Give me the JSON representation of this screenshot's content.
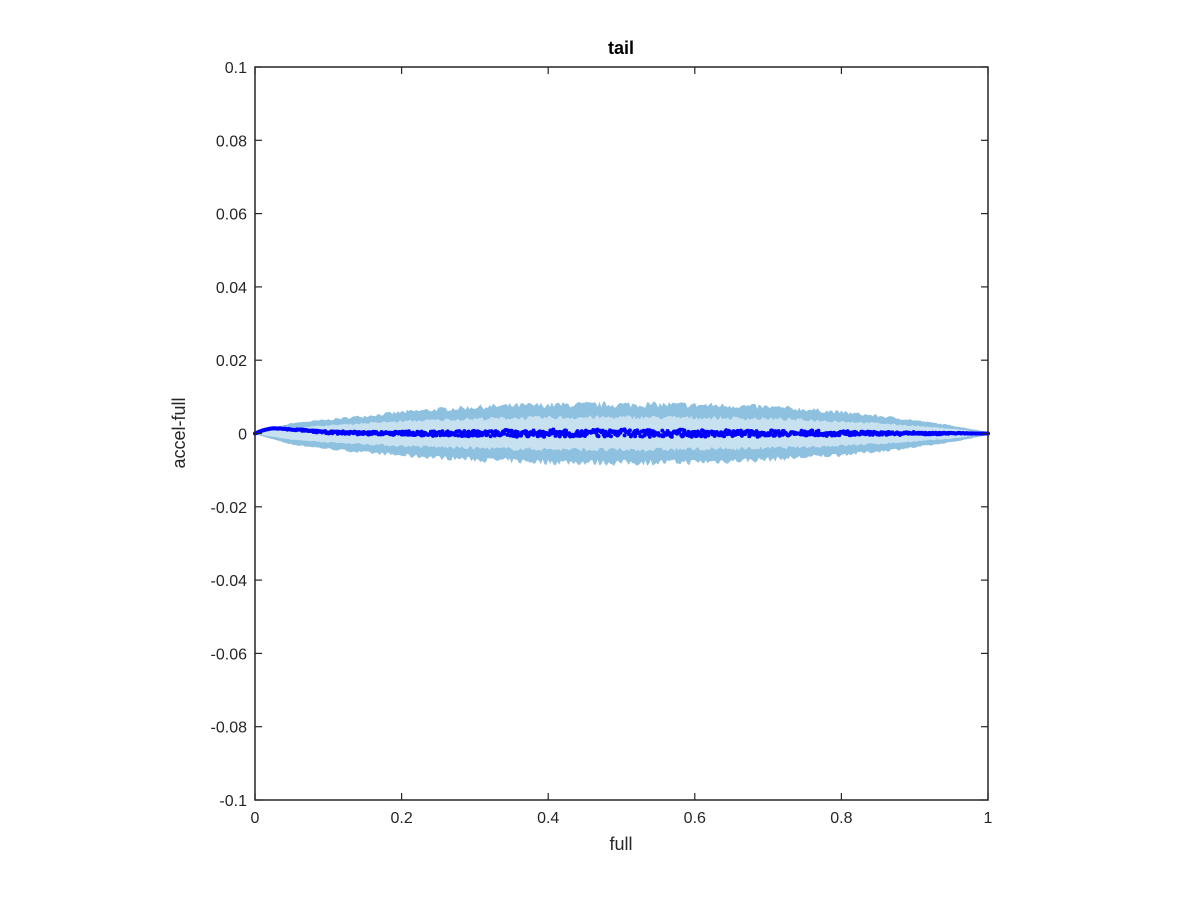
{
  "chart_data": {
    "type": "scatter",
    "title": "tail",
    "xlabel": "full",
    "ylabel": "accel-full",
    "xlim": [
      0,
      1
    ],
    "ylim": [
      -0.1,
      0.1
    ],
    "x_ticks": [
      0,
      0.2,
      0.4,
      0.6,
      0.8,
      1
    ],
    "x_tick_labels": [
      "0",
      "0.2",
      "0.4",
      "0.6",
      "0.8",
      "1"
    ],
    "y_ticks": [
      -0.1,
      -0.08,
      -0.06,
      -0.04,
      -0.02,
      0,
      0.02,
      0.04,
      0.06,
      0.08,
      0.1
    ],
    "y_tick_labels": [
      "-0.1",
      "-0.08",
      "-0.06",
      "-0.04",
      "-0.02",
      "0",
      "0.02",
      "0.04",
      "0.06",
      "0.08",
      "0.1"
    ],
    "grid": false,
    "box": true,
    "colors": {
      "outer_band": "#8ec1e0",
      "inner_band": "#c8e1f1",
      "points": "#0000ff",
      "axes": "#262626"
    },
    "bands": {
      "x": [
        0,
        0.05,
        0.1,
        0.15,
        0.2,
        0.25,
        0.3,
        0.35,
        0.4,
        0.45,
        0.5,
        0.55,
        0.6,
        0.65,
        0.7,
        0.75,
        0.8,
        0.85,
        0.9,
        0.95,
        1
      ],
      "outer_upper": [
        0.0002,
        0.0028,
        0.0038,
        0.0048,
        0.0058,
        0.0066,
        0.0072,
        0.0076,
        0.0078,
        0.0079,
        0.0079,
        0.0079,
        0.0078,
        0.0076,
        0.0072,
        0.0066,
        0.0058,
        0.0048,
        0.0036,
        0.0022,
        0.0004
      ],
      "outer_lower": [
        -0.0002,
        -0.003,
        -0.0042,
        -0.0052,
        -0.006,
        -0.0066,
        -0.0071,
        -0.0075,
        -0.0078,
        -0.0079,
        -0.008,
        -0.0079,
        -0.0078,
        -0.0075,
        -0.0071,
        -0.0065,
        -0.0058,
        -0.0049,
        -0.0038,
        -0.0024,
        -0.0004
      ],
      "inner_upper": [
        0.0001,
        0.0016,
        0.0022,
        0.0028,
        0.0033,
        0.0037,
        0.004,
        0.0042,
        0.0043,
        0.0044,
        0.0044,
        0.0044,
        0.0043,
        0.0042,
        0.004,
        0.0037,
        0.0033,
        0.0028,
        0.0021,
        0.0013,
        0.0002
      ],
      "inner_lower": [
        -0.0001,
        -0.0017,
        -0.0024,
        -0.0029,
        -0.0034,
        -0.0037,
        -0.004,
        -0.0042,
        -0.0043,
        -0.0044,
        -0.0045,
        -0.0044,
        -0.0043,
        -0.0042,
        -0.004,
        -0.0037,
        -0.0033,
        -0.0028,
        -0.0022,
        -0.0014,
        -0.0002
      ]
    },
    "series": [
      {
        "x": [
          0,
          0.005,
          0.01,
          0.015,
          0.02,
          0.025,
          0.03,
          0.035,
          0.04,
          0.05,
          0.06,
          0.07,
          0.08,
          0.09,
          0.1,
          0.12,
          0.14,
          0.16,
          0.18,
          0.2,
          0.22,
          0.24,
          0.26,
          0.28,
          0.3,
          0.32,
          0.34,
          0.36,
          0.38,
          0.4,
          0.42,
          0.44,
          0.46,
          0.48,
          0.5,
          0.52,
          0.54,
          0.56,
          0.58,
          0.6,
          0.62,
          0.64,
          0.66,
          0.68,
          0.7,
          0.72,
          0.74,
          0.76,
          0.78,
          0.8,
          0.82,
          0.84,
          0.86,
          0.88,
          0.9,
          0.92,
          0.94,
          0.96,
          0.98,
          1
        ],
        "y": [
          0,
          0.0004,
          0.0008,
          0.0011,
          0.0013,
          0.0014,
          0.0014,
          0.0013,
          0.0012,
          0.0011,
          0.001,
          0.0008,
          0.0006,
          0.0005,
          0.0003,
          0.0002,
          0.0001,
          0.0001,
          0.0,
          0.0001,
          0.0,
          -0.0001,
          0.0002,
          0.0,
          0.0001,
          -0.0001,
          0.0002,
          0.0,
          0.0001,
          0.0,
          0.0002,
          -0.0001,
          0.0001,
          0.0,
          0.0003,
          0.0,
          0.0001,
          -0.0001,
          0.0002,
          0.0,
          0.0001,
          0.0,
          0.0002,
          -0.0001,
          0.0001,
          0.0002,
          0.0,
          0.0001,
          -0.0001,
          0.0001,
          0.0,
          0.0001,
          0.0,
          0.0,
          0.0001,
          0.0,
          0.0,
          0.0001,
          0.0,
          0.0
        ]
      }
    ]
  }
}
